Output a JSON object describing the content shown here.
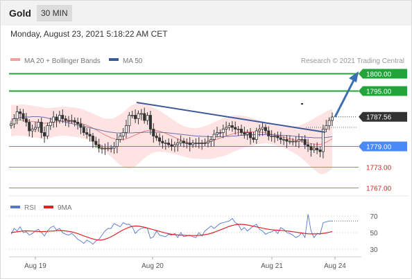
{
  "header": {
    "instrument": "Gold",
    "timeframe": "30 MIN"
  },
  "datetime": "Monday, August 23, 2021 5:18:22 AM CET",
  "legend": {
    "ma_bb_label": "MA 20 + Bollinger Bands",
    "ma50_label": "MA 50",
    "copyright": "Research © 2021 Trading Central"
  },
  "rsi_legend": {
    "rsi_label": "RSI",
    "ma9_label": "9MA"
  },
  "colors": {
    "bullish": "#22a43a",
    "bearish": "#ff6060",
    "current": "#333333",
    "support": "#4a8af4",
    "bollinger": "#fdd9d9",
    "ma20": "#f08080",
    "ma50": "#6a70b0",
    "trendline": "#3c5a9a",
    "candle": "#333333",
    "rsi": "#5577cc",
    "rsi_ma": "#dd2222"
  },
  "chart_data": [
    {
      "type": "candlestick",
      "title": "",
      "x_ticks": [
        "Aug 19",
        "Aug 20",
        "Aug 21",
        "Aug 24"
      ],
      "ylim": [
        1765.5,
        1801.5
      ],
      "levels": [
        {
          "value": 1800.0,
          "label": "1800.00",
          "kind": "bullish"
        },
        {
          "value": 1795.0,
          "label": "1795.00",
          "kind": "bullish"
        },
        {
          "value": 1787.56,
          "label": "1787.56",
          "kind": "current"
        },
        {
          "value": 1779.0,
          "label": "1779.00",
          "kind": "support"
        },
        {
          "value": 1773.0,
          "label": "1773.00",
          "kind": "bearish"
        },
        {
          "value": 1767.0,
          "label": "1767.00",
          "kind": "bearish"
        }
      ],
      "close": [
        1785.5,
        1787,
        1789,
        1788.5,
        1787,
        1786,
        1783.5,
        1784,
        1784.5,
        1786,
        1783,
        1782,
        1785,
        1786,
        1787.5,
        1786.5,
        1788,
        1787,
        1786.5,
        1786.5,
        1786.5,
        1786,
        1785.5,
        1784.5,
        1783,
        1782.5,
        1782,
        1780.5,
        1779.5,
        1778.5,
        1778.5,
        1778.5,
        1778.5,
        1778.5,
        1779,
        1781,
        1782,
        1783,
        1785,
        1788,
        1788,
        1787,
        1788.5,
        1788.5,
        1786.5,
        1788,
        1784,
        1782,
        1781.5,
        1780.5,
        1780,
        1780,
        1779.5,
        1779,
        1779.5,
        1780,
        1780.5,
        1780,
        1780,
        1779.5,
        1780,
        1780,
        1780,
        1780,
        1780,
        1780.5,
        1781,
        1782.5,
        1783,
        1783,
        1784,
        1784.5,
        1785,
        1784.5,
        1784,
        1784,
        1783,
        1782.5,
        1783,
        1781.5,
        1781,
        1783.5,
        1784,
        1784.5,
        1783.5,
        1782,
        1782,
        1782,
        1781.5,
        1781,
        1781,
        1780.5,
        1780.5,
        1780.5,
        1780.5,
        1781,
        1781,
        1779.5,
        1779,
        1778,
        1778.5,
        1778,
        1777.5,
        1784,
        1785,
        1786.5,
        1787.5
      ],
      "ma20": [
        1786.5,
        1786.5,
        1786.6,
        1786.6,
        1786.6,
        1786.5,
        1786.3,
        1786.2,
        1786.1,
        1786,
        1785.8,
        1785.7,
        1785.7,
        1785.8,
        1786,
        1786.1,
        1786.2,
        1786.3,
        1786.3,
        1786.2,
        1786.1,
        1786,
        1785.9,
        1785.7,
        1785.4,
        1785.1,
        1784.7,
        1784.3,
        1783.8,
        1783.3,
        1782.8,
        1782.3,
        1781.9,
        1781.5,
        1781.2,
        1781,
        1780.9,
        1781,
        1781.2,
        1781.5,
        1781.9,
        1782.3,
        1782.7,
        1783.1,
        1783.4,
        1783.6,
        1783.7,
        1783.7,
        1783.6,
        1783.4,
        1783.1,
        1782.8,
        1782.4,
        1782,
        1781.6,
        1781.2,
        1780.8,
        1780.5,
        1780.2,
        1780,
        1779.9,
        1779.9,
        1779.9,
        1780,
        1780.1,
        1780.3,
        1780.5,
        1780.8,
        1781.1,
        1781.4,
        1781.7,
        1782,
        1782.3,
        1782.6,
        1782.8,
        1783,
        1783.1,
        1783.2,
        1783.2,
        1783.2,
        1783.2,
        1783.2,
        1783.1,
        1783,
        1782.9,
        1782.7,
        1782.5,
        1782.3,
        1782.1,
        1781.9,
        1781.7,
        1781.4,
        1781.2,
        1781,
        1780.8,
        1780.6,
        1780.4,
        1780.2,
        1780,
        1779.8,
        1779.7,
        1779.6,
        1779.6,
        1779.8,
        1780.2,
        1780.7,
        1781.2
      ],
      "ma50": [
        1786.9,
        1787,
        1787.2,
        1787.3,
        1787.4,
        1787.5,
        1787.5,
        1787.6,
        1787.6,
        1787.6,
        1787.5,
        1787.4,
        1787.2,
        1787,
        1786.8,
        1786.6,
        1786.4,
        1786.2,
        1786,
        1785.8,
        1785.6,
        1785.4,
        1785.2,
        1785,
        1784.8,
        1784.6,
        1784.4,
        1784.2,
        1784,
        1783.8,
        1783.6,
        1783.4,
        1783.2,
        1783.1,
        1783,
        1782.9,
        1782.9,
        1782.9,
        1782.9,
        1782.9,
        1782.9,
        1783,
        1783,
        1783,
        1783.1,
        1783.1,
        1783.1,
        1783.1,
        1783.1,
        1783.1,
        1783,
        1783,
        1782.9,
        1782.8,
        1782.7,
        1782.6,
        1782.5,
        1782.4,
        1782.3,
        1782.2,
        1782.1,
        1782,
        1782,
        1781.9,
        1781.9,
        1781.8,
        1781.8,
        1781.8,
        1781.8,
        1781.8,
        1781.8,
        1781.9,
        1781.9,
        1782,
        1782,
        1782.1,
        1782.2,
        1782.2,
        1782.3,
        1782.3,
        1782.4,
        1782.4,
        1782.4,
        1782.4,
        1782.4,
        1782.4,
        1782.4,
        1782.3,
        1782.3,
        1782.2,
        1782.2,
        1782.1,
        1782.1,
        1782,
        1781.9,
        1781.8,
        1781.8,
        1781.7,
        1781.6,
        1781.6,
        1781.5,
        1781.5,
        1781.5,
        1781.5,
        1781.6,
        1781.7,
        1781.8
      ],
      "bb_upper": [
        1791,
        1791,
        1791,
        1791.1,
        1791.1,
        1791,
        1790.9,
        1790.8,
        1790.6,
        1790.5,
        1790.4,
        1790.2,
        1790.1,
        1790.1,
        1790.2,
        1790.3,
        1790.4,
        1790.5,
        1790.5,
        1790.4,
        1790.3,
        1790.2,
        1790.1,
        1789.9,
        1789.6,
        1789.2,
        1788.9,
        1788.5,
        1788.1,
        1787.7,
        1787.3,
        1787.1,
        1787,
        1787,
        1787.2,
        1787.6,
        1788.2,
        1788.8,
        1789.6,
        1790.4,
        1791,
        1791.3,
        1791.4,
        1791.4,
        1791.2,
        1790.9,
        1790.6,
        1790.2,
        1789.8,
        1789.3,
        1788.8,
        1788.2,
        1787.6,
        1787,
        1786.4,
        1785.8,
        1785.3,
        1784.9,
        1784.6,
        1784.4,
        1784.3,
        1784.3,
        1784.4,
        1784.6,
        1784.9,
        1785.2,
        1785.6,
        1786,
        1786.4,
        1786.8,
        1787.2,
        1787.5,
        1787.7,
        1787.9,
        1788,
        1788,
        1787.9,
        1787.8,
        1787.6,
        1787.4,
        1787.1,
        1786.8,
        1786.5,
        1786.2,
        1785.9,
        1785.6,
        1785.4,
        1785.2,
        1785,
        1784.8,
        1784.7,
        1784.6,
        1784.6,
        1784.7,
        1784.8,
        1785,
        1785.3,
        1785.7,
        1786.1,
        1786.6,
        1787.1,
        1787.6,
        1788.1,
        1788.6,
        1789.1,
        1789.5,
        1789.8
      ],
      "bb_lower": [
        1782,
        1782,
        1782.2,
        1782.1,
        1782.1,
        1782,
        1781.7,
        1781.6,
        1781.6,
        1781.5,
        1781.2,
        1781.2,
        1781.3,
        1781.5,
        1781.8,
        1781.9,
        1782,
        1782.1,
        1782.1,
        1782,
        1781.9,
        1781.8,
        1781.7,
        1781.5,
        1781.2,
        1781,
        1780.5,
        1780.1,
        1779.5,
        1778.9,
        1778.3,
        1777.5,
        1776.8,
        1776,
        1775.2,
        1774.4,
        1773.6,
        1773.2,
        1772.8,
        1772.6,
        1772.8,
        1773.3,
        1774,
        1774.8,
        1775.6,
        1776.3,
        1776.8,
        1777.2,
        1777.4,
        1777.5,
        1777.4,
        1777.4,
        1777.2,
        1777,
        1776.8,
        1776.6,
        1776.3,
        1776.1,
        1775.8,
        1775.6,
        1775.5,
        1775.5,
        1775.4,
        1775.4,
        1775.3,
        1775.4,
        1775.4,
        1775.6,
        1775.8,
        1776,
        1776.2,
        1776.5,
        1776.9,
        1777.3,
        1777.6,
        1778,
        1778.3,
        1778.6,
        1778.8,
        1779,
        1779.3,
        1779.6,
        1779.7,
        1779.8,
        1779.9,
        1779.8,
        1779.6,
        1779.4,
        1779.2,
        1779,
        1778.7,
        1778.2,
        1777.8,
        1777.3,
        1776.8,
        1776.2,
        1775.5,
        1774.7,
        1773.9,
        1773,
        1772.3,
        1771.6,
        1771.1,
        1771,
        1771.3,
        1771.9,
        1772.6
      ]
    },
    {
      "type": "line",
      "title": "",
      "x_ticks": [
        "Aug 19",
        "Aug 20",
        "Aug 21",
        "Aug 24"
      ],
      "ylim": [
        25,
        75
      ],
      "y_ticks": [
        70,
        50,
        30
      ],
      "series": [
        {
          "name": "RSI",
          "values": [
            48,
            55,
            52,
            57,
            50,
            51,
            47,
            49,
            52,
            54,
            50,
            46,
            52,
            56,
            58,
            53,
            55,
            50,
            48,
            47,
            49,
            46,
            42,
            40,
            37,
            41,
            39,
            36,
            40,
            42,
            47,
            52,
            55,
            55,
            61,
            59,
            57,
            62,
            60,
            60,
            57,
            49,
            53,
            55,
            56,
            55,
            43,
            45,
            52,
            47,
            46,
            45,
            48,
            47,
            49,
            44,
            50,
            45,
            46,
            47,
            45,
            44,
            50,
            46,
            52,
            55,
            58,
            55,
            58,
            61,
            62,
            63,
            64,
            67,
            62,
            60,
            53,
            56,
            52,
            55,
            58,
            60,
            54,
            52,
            48,
            50,
            51,
            53,
            49,
            56,
            54,
            50,
            49,
            47,
            44,
            46,
            50,
            44,
            72,
            52,
            44,
            49,
            48,
            62,
            63,
            64,
            64
          ]
        },
        {
          "name": "9MA",
          "values": [
            50,
            50.5,
            51,
            51.5,
            52,
            52.2,
            52,
            51.8,
            51.5,
            51.3,
            51.2,
            51.3,
            51.5,
            51.8,
            52,
            52.3,
            52.5,
            52.4,
            52,
            51.5,
            50.8,
            49.9,
            48.8,
            47.5,
            46,
            44.8,
            43.5,
            42.4,
            41.5,
            41,
            41.2,
            42,
            43.3,
            45,
            47,
            49.2,
            51.3,
            53.3,
            55,
            56.5,
            57.5,
            58,
            57.8,
            57.2,
            56.5,
            55.5,
            54.5,
            53.5,
            52.5,
            51.5,
            50.5,
            49.5,
            48.7,
            48,
            47.5,
            47.2,
            47,
            46.8,
            46.6,
            46.5,
            46.5,
            46.5,
            46.7,
            47,
            47.5,
            48.2,
            49.2,
            50.4,
            51.8,
            53.2,
            54.7,
            56.1,
            57.5,
            58.6,
            59.4,
            59.9,
            60,
            59.7,
            59.2,
            58.5,
            57.7,
            56.9,
            56.1,
            55.3,
            54.6,
            54,
            53.5,
            53.2,
            52.9,
            52.6,
            52.3,
            52,
            51.6,
            51.1,
            50.6,
            50,
            49.4,
            49,
            48.6,
            48.4,
            48.4,
            48.5,
            48.7,
            49.1,
            49.7,
            50.5,
            51.3
          ]
        }
      ]
    }
  ]
}
